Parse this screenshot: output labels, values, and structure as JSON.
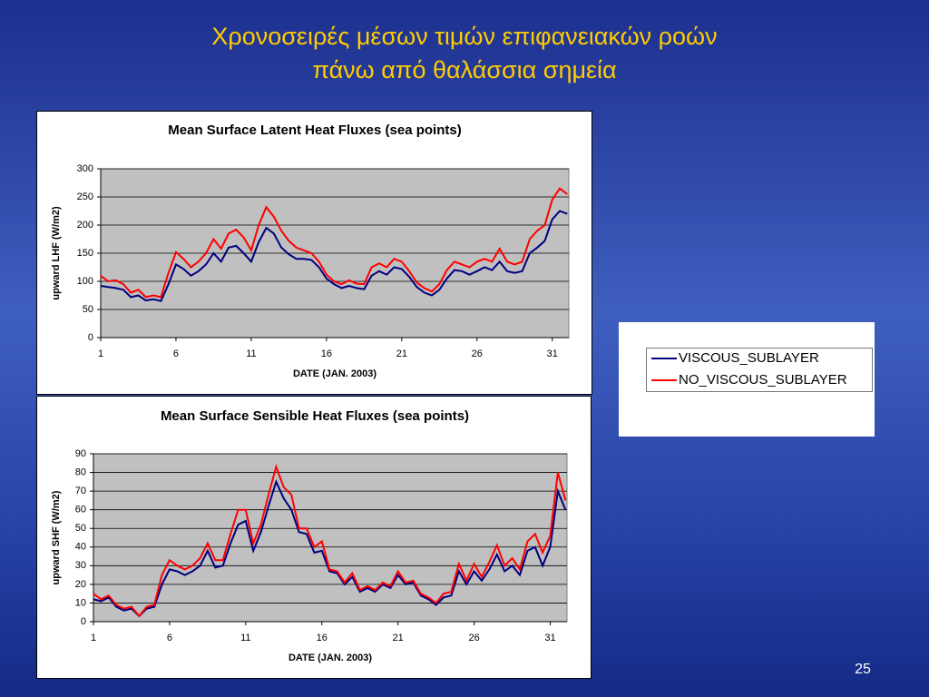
{
  "title": [
    "Χρονοσειρές μέσων τιμών επιφανειακών ροών",
    "πάνω από θαλάσσια σημεία"
  ],
  "slide_number": "25",
  "chart_data": [
    {
      "type": "line",
      "title": "Mean Surface Latent Heat Fluxes (sea points)",
      "x_label": "DATE (JAN. 2003)",
      "y_label": "upward LHF (W/m2)",
      "x": [
        1,
        1.5,
        2,
        2.5,
        3,
        3.5,
        4,
        4.5,
        5,
        5.5,
        6,
        6.5,
        7,
        7.5,
        8,
        8.5,
        9,
        9.5,
        10,
        10.5,
        11,
        11.5,
        12,
        12.5,
        13,
        13.5,
        14,
        14.5,
        15,
        15.5,
        16,
        16.5,
        17,
        17.5,
        18,
        18.5,
        19,
        19.5,
        20,
        20.5,
        21,
        21.5,
        22,
        22.5,
        23,
        23.5,
        24,
        24.5,
        25,
        25.5,
        26,
        26.5,
        27,
        27.5,
        28,
        28.5,
        29,
        29.5,
        30,
        30.5,
        31,
        31.5,
        32
      ],
      "xlim": [
        1,
        32.1
      ],
      "xticks": [
        1,
        6,
        11,
        16,
        21,
        26,
        31
      ],
      "ylim": [
        0,
        300
      ],
      "yticks": [
        0,
        50,
        100,
        150,
        200,
        250,
        300
      ],
      "grid": true,
      "series": [
        {
          "name": "VISCOUS_SUBLAYER",
          "color": "#000080",
          "values": [
            92,
            90,
            88,
            85,
            72,
            75,
            66,
            68,
            65,
            95,
            130,
            122,
            110,
            118,
            130,
            150,
            135,
            160,
            163,
            150,
            135,
            170,
            195,
            185,
            160,
            148,
            140,
            140,
            138,
            125,
            105,
            95,
            88,
            92,
            88,
            86,
            110,
            118,
            112,
            125,
            122,
            108,
            90,
            80,
            75,
            85,
            105,
            120,
            118,
            112,
            118,
            125,
            120,
            135,
            118,
            115,
            118,
            150,
            160,
            172,
            210,
            225,
            220
          ]
        },
        {
          "name": "NO_VISCOUS_SUBLAYER",
          "color": "#ff0000",
          "values": [
            110,
            100,
            102,
            95,
            80,
            85,
            72,
            75,
            72,
            115,
            152,
            140,
            125,
            135,
            150,
            175,
            158,
            185,
            192,
            178,
            155,
            200,
            232,
            215,
            190,
            172,
            160,
            155,
            150,
            135,
            112,
            100,
            95,
            102,
            96,
            95,
            125,
            132,
            125,
            140,
            135,
            118,
            98,
            88,
            82,
            95,
            120,
            135,
            130,
            125,
            135,
            140,
            135,
            158,
            135,
            130,
            135,
            175,
            190,
            200,
            245,
            265,
            255
          ]
        }
      ]
    },
    {
      "type": "line",
      "title": "Mean Surface Sensible Heat Fluxes (sea points)",
      "x_label": "DATE (JAN. 2003)",
      "y_label": "upward SHF (W/m2)",
      "x": [
        1,
        1.5,
        2,
        2.5,
        3,
        3.5,
        4,
        4.5,
        5,
        5.5,
        6,
        6.5,
        7,
        7.5,
        8,
        8.5,
        9,
        9.5,
        10,
        10.5,
        11,
        11.5,
        12,
        12.5,
        13,
        13.5,
        14,
        14.5,
        15,
        15.5,
        16,
        16.5,
        17,
        17.5,
        18,
        18.5,
        19,
        19.5,
        20,
        20.5,
        21,
        21.5,
        22,
        22.5,
        23,
        23.5,
        24,
        24.5,
        25,
        25.5,
        26,
        26.5,
        27,
        27.5,
        28,
        28.5,
        29,
        29.5,
        30,
        30.5,
        31,
        31.5,
        32
      ],
      "xlim": [
        1,
        32.1
      ],
      "xticks": [
        1,
        6,
        11,
        16,
        21,
        26,
        31
      ],
      "ylim": [
        0,
        90
      ],
      "yticks": [
        0,
        10,
        20,
        30,
        40,
        50,
        60,
        70,
        80,
        90
      ],
      "grid": true,
      "series": [
        {
          "color": "#000080",
          "values": [
            12,
            11,
            13,
            8,
            6,
            7,
            3,
            7,
            8,
            20,
            28,
            27,
            25,
            27,
            30,
            38,
            29,
            30,
            42,
            52,
            54,
            38,
            48,
            62,
            75,
            66,
            60,
            48,
            47,
            37,
            38,
            27,
            26,
            20,
            24,
            16,
            18,
            16,
            20,
            18,
            25,
            20,
            21,
            14,
            12,
            9,
            13,
            14,
            27,
            20,
            27,
            22,
            28,
            36,
            27,
            30,
            25,
            38,
            40,
            30,
            40,
            70,
            60
          ]
        },
        {
          "color": "#ff0000",
          "values": [
            15,
            12,
            14,
            9,
            7,
            8,
            3,
            8,
            9,
            25,
            33,
            30,
            28,
            30,
            34,
            42,
            33,
            33,
            47,
            60,
            60,
            42,
            52,
            68,
            83,
            72,
            68,
            50,
            50,
            40,
            43,
            28,
            27,
            21,
            26,
            17,
            19,
            17,
            21,
            19,
            27,
            21,
            22,
            15,
            13,
            10,
            15,
            16,
            31,
            22,
            31,
            24,
            32,
            41,
            30,
            34,
            28,
            43,
            47,
            37,
            46,
            80,
            65
          ]
        }
      ]
    }
  ]
}
